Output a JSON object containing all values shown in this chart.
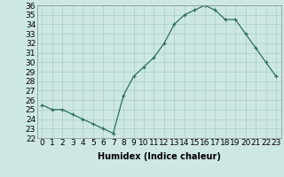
{
  "x": [
    0,
    1,
    2,
    3,
    4,
    5,
    6,
    7,
    8,
    9,
    10,
    11,
    12,
    13,
    14,
    15,
    16,
    17,
    18,
    19,
    20,
    21,
    22,
    23
  ],
  "y": [
    25.5,
    25.0,
    25.0,
    24.5,
    24.0,
    23.5,
    23.0,
    22.5,
    26.5,
    28.5,
    29.5,
    30.5,
    32.0,
    34.0,
    35.0,
    35.5,
    36.0,
    35.5,
    34.5,
    34.5,
    33.0,
    31.5,
    30.0,
    28.5
  ],
  "line_color": "#2d6e5e",
  "marker": "+",
  "marker_color": "#2d6e5e",
  "bg_color": "#cde8e3",
  "grid_color": "#a8cdc8",
  "xlabel": "Humidex (Indice chaleur)",
  "ylim": [
    22,
    36
  ],
  "xlim": [
    -0.5,
    23.5
  ],
  "yticks": [
    22,
    23,
    24,
    25,
    26,
    27,
    28,
    29,
    30,
    31,
    32,
    33,
    34,
    35,
    36
  ],
  "xticks": [
    0,
    1,
    2,
    3,
    4,
    5,
    6,
    7,
    8,
    9,
    10,
    11,
    12,
    13,
    14,
    15,
    16,
    17,
    18,
    19,
    20,
    21,
    22,
    23
  ],
  "xtick_labels": [
    "0",
    "1",
    "2",
    "3",
    "4",
    "5",
    "6",
    "7",
    "8",
    "9",
    "10",
    "11",
    "12",
    "13",
    "14",
    "15",
    "16",
    "17",
    "18",
    "19",
    "20",
    "21",
    "22",
    "23"
  ],
  "axis_fontsize": 7,
  "tick_fontsize": 6.5
}
